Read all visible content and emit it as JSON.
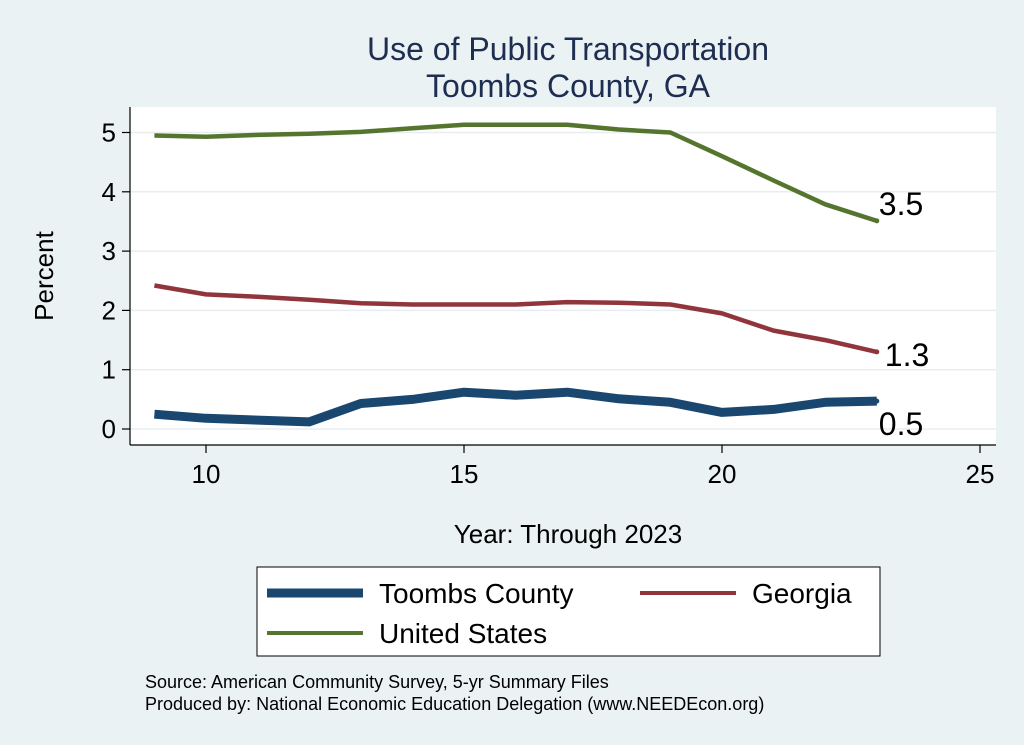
{
  "chart_data": {
    "type": "line",
    "title": [
      "Use of Public Transportation",
      "Toombs County, GA"
    ],
    "xlabel": "Year: Through 2023",
    "ylabel": "Percent",
    "xlim": [
      9,
      25
    ],
    "ylim": [
      0,
      5
    ],
    "xticks": [
      10,
      15,
      20,
      25
    ],
    "yticks": [
      0,
      1,
      2,
      3,
      4,
      5
    ],
    "grid": "horizontal",
    "series": [
      {
        "name": "Toombs County",
        "color": "#1a476f",
        "x": [
          9,
          10,
          11,
          12,
          13,
          14,
          15,
          16,
          17,
          18,
          19,
          20,
          21,
          22,
          23
        ],
        "values": [
          0.25,
          0.18,
          0.15,
          0.12,
          0.43,
          0.5,
          0.62,
          0.57,
          0.62,
          0.51,
          0.45,
          0.28,
          0.33,
          0.45,
          0.47
        ],
        "end_label": "0.5"
      },
      {
        "name": "Georgia",
        "color": "#90353b",
        "x": [
          9,
          10,
          11,
          12,
          13,
          14,
          15,
          16,
          17,
          18,
          19,
          20,
          21,
          22,
          23
        ],
        "values": [
          2.42,
          2.27,
          2.23,
          2.18,
          2.12,
          2.1,
          2.1,
          2.1,
          2.14,
          2.13,
          2.1,
          1.95,
          1.66,
          1.5,
          1.3
        ],
        "end_label": "1.3"
      },
      {
        "name": "United States",
        "color": "#55752f",
        "x": [
          9,
          10,
          11,
          12,
          13,
          14,
          15,
          16,
          17,
          18,
          19,
          20,
          21,
          22,
          23
        ],
        "values": [
          4.95,
          4.93,
          4.96,
          4.98,
          5.01,
          5.07,
          5.13,
          5.13,
          5.13,
          5.05,
          5.0,
          4.6,
          4.19,
          3.79,
          3.51
        ],
        "end_label": "3.5"
      }
    ],
    "legend": {
      "position": "bottom",
      "entries": [
        "Toombs County",
        "Georgia",
        "United States"
      ]
    },
    "notes": [
      "Source: American Community Survey, 5-yr Summary Files",
      "Produced by: National Economic Education Delegation (www.NEEDEcon.org)"
    ]
  }
}
